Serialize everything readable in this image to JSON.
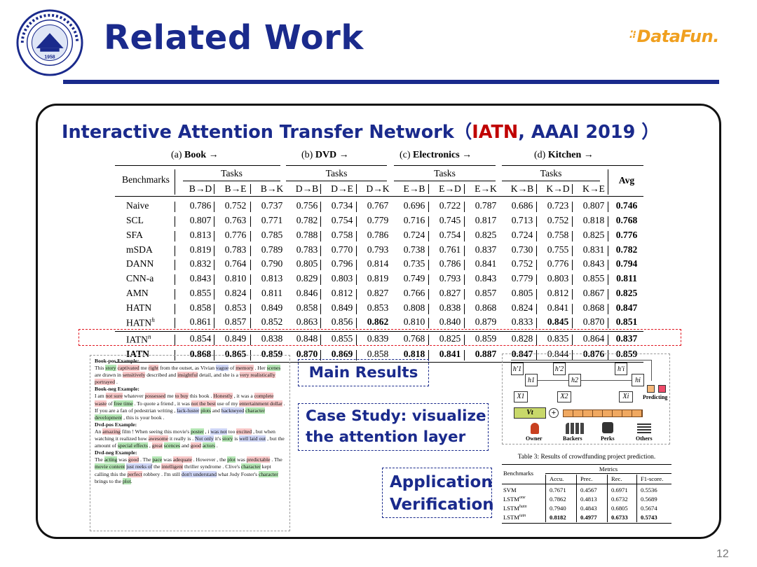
{
  "header": {
    "title": "Related Work",
    "logo_text": "DataFun.",
    "seal_year": "1958"
  },
  "subtitle": {
    "prefix": "Interactive Attention Transfer Network",
    "open": "（",
    "model": "IATN",
    "suffix": ", AAAI 2019 ）"
  },
  "results_table": {
    "groups": [
      {
        "prefix": "(a) ",
        "name": "Book",
        "arrow": " →"
      },
      {
        "prefix": "(b) ",
        "name": "DVD",
        "arrow": " →"
      },
      {
        "prefix": "(c) ",
        "name": "Electronics",
        "arrow": " →"
      },
      {
        "prefix": "(d) ",
        "name": "Kitchen",
        "arrow": " →"
      }
    ],
    "benchmarks_header": "Benchmarks",
    "tasks_header": "Tasks",
    "avg_header": "Avg",
    "tasks": [
      "B→D",
      "B→E",
      "B→K",
      "D→B",
      "D→E",
      "D→K",
      "E→B",
      "E→D",
      "E→K",
      "K→B",
      "K→D",
      "K→E"
    ],
    "rows": [
      {
        "name": "Naive",
        "values": [
          "0.786",
          "0.752",
          "0.737",
          "0.756",
          "0.734",
          "0.767",
          "0.696",
          "0.722",
          "0.787",
          "0.686",
          "0.723",
          "0.807"
        ],
        "avg": "0.746",
        "bold": []
      },
      {
        "name": "SCL",
        "values": [
          "0.807",
          "0.763",
          "0.771",
          "0.782",
          "0.754",
          "0.779",
          "0.716",
          "0.745",
          "0.817",
          "0.713",
          "0.752",
          "0.818"
        ],
        "avg": "0.768",
        "bold": []
      },
      {
        "name": "SFA",
        "values": [
          "0.813",
          "0.776",
          "0.785",
          "0.788",
          "0.758",
          "0.786",
          "0.724",
          "0.754",
          "0.825",
          "0.724",
          "0.758",
          "0.825"
        ],
        "avg": "0.776",
        "bold": []
      },
      {
        "name": "mSDA",
        "values": [
          "0.819",
          "0.783",
          "0.789",
          "0.783",
          "0.770",
          "0.793",
          "0.738",
          "0.761",
          "0.837",
          "0.730",
          "0.755",
          "0.831"
        ],
        "avg": "0.782",
        "bold": []
      },
      {
        "name": "DANN",
        "values": [
          "0.832",
          "0.764",
          "0.790",
          "0.805",
          "0.796",
          "0.814",
          "0.735",
          "0.786",
          "0.841",
          "0.752",
          "0.776",
          "0.843"
        ],
        "avg": "0.794",
        "bold": []
      },
      {
        "name": "CNN-a",
        "values": [
          "0.843",
          "0.810",
          "0.813",
          "0.829",
          "0.803",
          "0.819",
          "0.749",
          "0.793",
          "0.843",
          "0.779",
          "0.803",
          "0.855"
        ],
        "avg": "0.811",
        "bold": []
      },
      {
        "name": "AMN",
        "values": [
          "0.855",
          "0.824",
          "0.811",
          "0.846",
          "0.812",
          "0.827",
          "0.766",
          "0.827",
          "0.857",
          "0.805",
          "0.812",
          "0.867"
        ],
        "avg": "0.825",
        "bold": []
      },
      {
        "name": "HATN",
        "values": [
          "0.858",
          "0.853",
          "0.849",
          "0.858",
          "0.849",
          "0.853",
          "0.808",
          "0.838",
          "0.868",
          "0.824",
          "0.841",
          "0.868"
        ],
        "avg": "0.847",
        "bold": []
      },
      {
        "name": "HATN",
        "sup": "h",
        "values": [
          "0.861",
          "0.857",
          "0.852",
          "0.863",
          "0.856",
          "0.862",
          "0.810",
          "0.840",
          "0.879",
          "0.833",
          "0.845",
          "0.870"
        ],
        "avg": "0.851",
        "bold": [
          5,
          10
        ]
      },
      {
        "name": "IATN",
        "sup": "n",
        "values": [
          "0.854",
          "0.849",
          "0.838",
          "0.848",
          "0.855",
          "0.839",
          "0.768",
          "0.825",
          "0.859",
          "0.828",
          "0.835",
          "0.864"
        ],
        "avg": "0.837",
        "bold": []
      },
      {
        "name": "IATN",
        "values": [
          "0.868",
          "0.865",
          "0.859",
          "0.870",
          "0.869",
          "0.858",
          "0.818",
          "0.841",
          "0.887",
          "0.847",
          "0.844",
          "0.876"
        ],
        "avg": "0.859",
        "bold": [
          0,
          1,
          2,
          3,
          4,
          6,
          7,
          8,
          9,
          11
        ],
        "bold_name": true
      }
    ]
  },
  "callouts": {
    "main_results": "Main Results",
    "case_study_1": "Case Study: visualize",
    "case_study_2": "the attention layer",
    "application_1": "Application",
    "application_2": "Verification"
  },
  "examples": [
    {
      "heading": "Book-pos Example:",
      "segments": [
        [
          "This ",
          ""
        ],
        [
          "story",
          "g"
        ],
        [
          " ",
          ""
        ],
        [
          "captivated",
          "r"
        ],
        [
          " me ",
          ""
        ],
        [
          "right",
          "r"
        ],
        [
          " from the outset, as Vivian ",
          ""
        ],
        [
          "vague",
          "p"
        ],
        [
          " of ",
          ""
        ],
        [
          "memory",
          "r"
        ],
        [
          " . Her ",
          ""
        ],
        [
          "scenes",
          "g"
        ],
        [
          " are drawn in ",
          ""
        ],
        [
          "sensitively",
          "r"
        ],
        [
          " described and ",
          ""
        ],
        [
          "insightful",
          "r"
        ],
        [
          " detail, and she is a ",
          ""
        ],
        [
          "very realistically",
          "r"
        ],
        [
          " ",
          ""
        ],
        [
          "portrayed",
          "r"
        ],
        [
          " .",
          ""
        ]
      ]
    },
    {
      "heading": "Book-neg Example:",
      "segments": [
        [
          "I am ",
          ""
        ],
        [
          "not sure",
          "r"
        ],
        [
          " whatever ",
          ""
        ],
        [
          "possessed",
          "r"
        ],
        [
          " me ",
          ""
        ],
        [
          "to buy",
          "r"
        ],
        [
          " this book . ",
          ""
        ],
        [
          "Honestly",
          "r"
        ],
        [
          " , it was a ",
          ""
        ],
        [
          "complete waste",
          "r"
        ],
        [
          " of ",
          ""
        ],
        [
          "free time",
          "g"
        ],
        [
          " . To quote a friend , it was ",
          ""
        ],
        [
          "not the best",
          "r"
        ],
        [
          " use of my ",
          ""
        ],
        [
          "entertainment dollar",
          "r"
        ],
        [
          " . If you are a fan of pedestrian writing , ",
          ""
        ],
        [
          "lack-luster",
          "p"
        ],
        [
          " ",
          ""
        ],
        [
          "plots",
          "g"
        ],
        [
          " and ",
          ""
        ],
        [
          "hackneyed",
          "p"
        ],
        [
          " ",
          ""
        ],
        [
          "character development",
          "g"
        ],
        [
          " , this is your book .",
          ""
        ]
      ]
    },
    {
      "heading": "Dvd-pos Example:",
      "segments": [
        [
          "An ",
          ""
        ],
        [
          "amazing",
          "r"
        ],
        [
          " film ! When seeing this movie's ",
          ""
        ],
        [
          "poster",
          "g"
        ],
        [
          " , i ",
          ""
        ],
        [
          "was not",
          "p"
        ],
        [
          " too ",
          ""
        ],
        [
          "excited",
          "r"
        ],
        [
          " , but when watching it realized how ",
          ""
        ],
        [
          "awesome",
          "r"
        ],
        [
          " it really is . ",
          ""
        ],
        [
          "Not only",
          "p"
        ],
        [
          " it's ",
          ""
        ],
        [
          "story",
          "g"
        ],
        [
          " is ",
          ""
        ],
        [
          "well laid out",
          "p"
        ],
        [
          " , but the amount of ",
          ""
        ],
        [
          "special effects",
          "g"
        ],
        [
          " , ",
          ""
        ],
        [
          "great",
          "r"
        ],
        [
          " ",
          ""
        ],
        [
          "scences",
          "g"
        ],
        [
          " and ",
          ""
        ],
        [
          "good",
          "r"
        ],
        [
          " ",
          ""
        ],
        [
          "actors",
          "g"
        ],
        [
          " .",
          ""
        ]
      ]
    },
    {
      "heading": "Dvd-neg Example:",
      "segments": [
        [
          "The ",
          ""
        ],
        [
          "acting",
          "g"
        ],
        [
          " was ",
          ""
        ],
        [
          "good",
          "r"
        ],
        [
          " . The ",
          ""
        ],
        [
          "pace",
          "g"
        ],
        [
          " was ",
          ""
        ],
        [
          "adequate",
          "r"
        ],
        [
          " . However , the ",
          ""
        ],
        [
          "plot",
          "g"
        ],
        [
          " was ",
          ""
        ],
        [
          "predictable",
          "r"
        ],
        [
          " . The ",
          ""
        ],
        [
          "movie content",
          "g"
        ],
        [
          " ",
          ""
        ],
        [
          "just reeks of",
          "p"
        ],
        [
          " the ",
          ""
        ],
        [
          "intelligent",
          "r"
        ],
        [
          " thriller syndrome . Clive's ",
          ""
        ],
        [
          "character",
          "g"
        ],
        [
          " kept calling this the ",
          ""
        ],
        [
          "perfect",
          "r"
        ],
        [
          " robbery . I'm still ",
          ""
        ],
        [
          "don't understand",
          "p"
        ],
        [
          " what Jody Foster's ",
          ""
        ],
        [
          "character",
          "g"
        ],
        [
          " brings to the ",
          ""
        ],
        [
          "plot",
          "g"
        ],
        [
          ".",
          ""
        ]
      ]
    }
  ],
  "diagram": {
    "h_top": [
      "h′1",
      "h′2",
      "h′i"
    ],
    "h_bottom": [
      "h1",
      "h2",
      "hi"
    ],
    "x_inputs": [
      "X1",
      "X2",
      "Xi"
    ],
    "v_label": "Vt",
    "predicting": "Predicting",
    "icons": [
      "Owner",
      "Backers",
      "Perks",
      "Others"
    ]
  },
  "table3": {
    "caption": "Table 3: Results of crowdfunding project prediction.",
    "benchmarks": "Benchmarks",
    "metrics": "Metrics",
    "cols": [
      "Accu.",
      "Prec.",
      "Rec.",
      "F1-score."
    ],
    "rows": [
      {
        "name": "SVM",
        "sup": "",
        "values": [
          "0.7671",
          "0.4567",
          "0.6971",
          "0.5536"
        ],
        "bold": false
      },
      {
        "name": "LSTM",
        "sup": "one",
        "values": [
          "0.7862",
          "0.4813",
          "0.6732",
          "0.5689"
        ],
        "bold": false
      },
      {
        "name": "LSTM",
        "sup": "hatn",
        "values": [
          "0.7940",
          "0.4843",
          "0.6805",
          "0.5674"
        ],
        "bold": false
      },
      {
        "name": "LSTM",
        "sup": "iatn",
        "values": [
          "0.8182",
          "0.4977",
          "0.6733",
          "0.5743"
        ],
        "bold": true
      }
    ]
  },
  "page_number": "12",
  "colors": {
    "primary": "#1a2a8c",
    "accent": "#c00000",
    "logo": "#f0a020",
    "highlight_box": "#e0141e"
  }
}
